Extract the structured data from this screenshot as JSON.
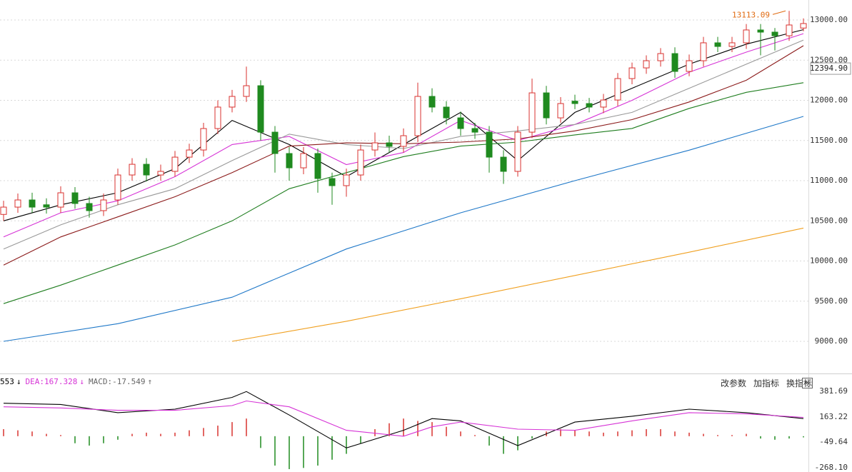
{
  "chart_data": [
    {
      "type": "candlestick",
      "up_color": "#d9322f",
      "down_color": "#1f8a1f",
      "xlim": [
        0,
        56
      ],
      "open": [
        10580,
        10671,
        10760,
        10700,
        10671,
        10849,
        10716,
        10627,
        10760,
        11071,
        11204,
        11071,
        11116,
        11293,
        11382,
        11649,
        11916,
        12049,
        12182,
        11604,
        11338,
        11160,
        11338,
        11027,
        10938,
        11071,
        11382,
        11471,
        11427,
        11560,
        12049,
        11916,
        11782,
        11649,
        11604,
        11293,
        11116,
        11604,
        12093,
        11782,
        11990,
        11960,
        11916,
        12004,
        12271,
        12404,
        12493,
        12582,
        12360,
        12493,
        12716,
        12671,
        12716,
        12876,
        12849,
        12804,
        12900
      ],
      "high": [
        10750,
        10840,
        10850,
        10780,
        10930,
        10920,
        10800,
        10840,
        11150,
        11280,
        11280,
        11200,
        11370,
        11460,
        11720,
        12000,
        12130,
        12420,
        12250,
        11680,
        11420,
        11420,
        11400,
        11100,
        11150,
        11450,
        11600,
        11560,
        11650,
        12220,
        12150,
        11990,
        11860,
        11720,
        11680,
        11380,
        11680,
        12270,
        12180,
        12040,
        12070,
        12030,
        12080,
        12340,
        12470,
        12560,
        12650,
        12660,
        12570,
        12790,
        12790,
        12790,
        12950,
        12950,
        12900,
        13113.09,
        13020
      ],
      "low": [
        10500,
        10600,
        10600,
        10590,
        10600,
        10650,
        10540,
        10560,
        10700,
        11000,
        10990,
        11000,
        11050,
        11220,
        11300,
        11580,
        11850,
        11980,
        11500,
        11100,
        11000,
        11080,
        10850,
        10700,
        10800,
        11000,
        11300,
        11350,
        11350,
        11480,
        11850,
        11700,
        11560,
        11520,
        11100,
        10960,
        11050,
        11530,
        11700,
        11720,
        11890,
        11850,
        11840,
        11930,
        12200,
        12330,
        12420,
        12280,
        12300,
        12420,
        12600,
        12600,
        12640,
        12560,
        12620,
        12740,
        12860
      ],
      "close": [
        10671,
        10760,
        10671,
        10671,
        10849,
        10716,
        10627,
        10760,
        11071,
        11204,
        11071,
        11116,
        11293,
        11382,
        11649,
        11916,
        12049,
        12182,
        11604,
        11338,
        11160,
        11338,
        11027,
        10938,
        11071,
        11382,
        11471,
        11427,
        11560,
        12049,
        11916,
        11782,
        11649,
        11604,
        11293,
        11116,
        11604,
        12093,
        11782,
        11960,
        11960,
        11916,
        12004,
        12271,
        12404,
        12493,
        12582,
        12360,
        12493,
        12716,
        12671,
        12716,
        12876,
        12849,
        12804,
        12938,
        12956
      ],
      "lines": [
        {
          "color": "#000000",
          "x": [
            0,
            4,
            8,
            12,
            16,
            20,
            24,
            28,
            32,
            36,
            40,
            44,
            48,
            52,
            56
          ],
          "values": [
            10500,
            10700,
            10850,
            11150,
            11750,
            11450,
            11050,
            11450,
            11850,
            11250,
            11850,
            12150,
            12450,
            12700,
            12880
          ]
        },
        {
          "color": "#d633d6",
          "x": [
            0,
            4,
            8,
            12,
            16,
            20,
            24,
            28,
            32,
            36,
            40,
            44,
            48,
            52,
            56
          ],
          "values": [
            10300,
            10600,
            10750,
            11050,
            11450,
            11550,
            11200,
            11350,
            11750,
            11500,
            11700,
            12000,
            12350,
            12600,
            12830
          ]
        },
        {
          "color": "#999999",
          "x": [
            0,
            4,
            8,
            12,
            16,
            20,
            24,
            28,
            32,
            36,
            40,
            44,
            48,
            52,
            56
          ],
          "values": [
            10150,
            10450,
            10700,
            10900,
            11250,
            11580,
            11450,
            11400,
            11550,
            11620,
            11700,
            11850,
            12150,
            12450,
            12750
          ]
        },
        {
          "color": "#8b1a1a",
          "x": [
            0,
            4,
            8,
            12,
            16,
            20,
            24,
            28,
            32,
            36,
            40,
            44,
            48,
            52,
            56
          ],
          "values": [
            9950,
            10300,
            10550,
            10800,
            11100,
            11430,
            11470,
            11460,
            11480,
            11520,
            11620,
            11760,
            11980,
            12250,
            12680
          ]
        },
        {
          "color": "#1e7d1e",
          "x": [
            0,
            4,
            8,
            12,
            16,
            20,
            24,
            28,
            32,
            36,
            40,
            44,
            48,
            52,
            56
          ],
          "values": [
            9470,
            9700,
            9950,
            10200,
            10500,
            10900,
            11100,
            11300,
            11430,
            11480,
            11570,
            11650,
            11900,
            12100,
            12220
          ]
        },
        {
          "color": "#1f78c8",
          "x": [
            0,
            8,
            16,
            24,
            32,
            40,
            48,
            56
          ],
          "values": [
            9000,
            9220,
            9550,
            10150,
            10600,
            11000,
            11380,
            11800
          ]
        },
        {
          "color": "#f0a020",
          "x": [
            16,
            24,
            32,
            40,
            48,
            56
          ],
          "values": [
            9000,
            9250,
            9530,
            9820,
            10110,
            10410
          ]
        }
      ],
      "ylim": [
        8627,
        13249
      ],
      "yticks": [
        {
          "value": 9000,
          "label": "9000.00"
        },
        {
          "value": 9500,
          "label": "9500.00"
        },
        {
          "value": 10000,
          "label": "10000.00"
        },
        {
          "value": 10500,
          "label": "10500.00"
        },
        {
          "value": 11000,
          "label": "11000.00"
        },
        {
          "value": 11500,
          "label": "11500.00"
        },
        {
          "value": 12000,
          "label": "12000.00"
        },
        {
          "value": 12500,
          "label": "12500.00"
        },
        {
          "value": 13000,
          "label": "13000.00"
        }
      ],
      "grid": true,
      "last_price": {
        "value": 12394.9,
        "label": "12394.90"
      },
      "high_marker": 13113.09
    },
    {
      "type": "macd",
      "xlim": [
        0,
        56
      ],
      "header": [
        {
          "label": "553",
          "arrow": "↓",
          "color": "#000000"
        },
        {
          "label": "DEA:167.328",
          "arrow": "↓",
          "color": "#d633d6"
        },
        {
          "label": "MACD:-17.549",
          "arrow": "↑",
          "color": "#666666"
        }
      ],
      "buttons": [
        "改参数",
        "加指标",
        "换指标"
      ],
      "dif": {
        "color": "#000000",
        "x": [
          0,
          4,
          8,
          12,
          16,
          17,
          20,
          24,
          28,
          30,
          32,
          36,
          40,
          44,
          48,
          52,
          56
        ],
        "values": [
          280,
          270,
          200,
          230,
          330,
          380,
          180,
          -100,
          50,
          150,
          130,
          -80,
          120,
          170,
          230,
          200,
          150
        ]
      },
      "dea": {
        "color": "#d633d6",
        "x": [
          0,
          4,
          8,
          12,
          16,
          17,
          20,
          24,
          28,
          30,
          32,
          36,
          40,
          44,
          48,
          52,
          56
        ],
        "values": [
          250,
          240,
          220,
          220,
          260,
          300,
          250,
          50,
          0,
          80,
          120,
          60,
          50,
          130,
          200,
          190,
          160
        ]
      },
      "bars": {
        "up_color": "#d9322f",
        "down_color": "#1f8a1f",
        "values": [
          60,
          50,
          40,
          20,
          10,
          -60,
          -80,
          -60,
          -30,
          20,
          30,
          20,
          30,
          50,
          70,
          90,
          120,
          150,
          -100,
          -250,
          -280,
          -270,
          -250,
          -200,
          -150,
          -60,
          60,
          110,
          150,
          130,
          120,
          80,
          40,
          10,
          -80,
          -150,
          -120,
          -20,
          40,
          60,
          50,
          40,
          30,
          40,
          50,
          60,
          60,
          40,
          30,
          20,
          10,
          10,
          20,
          -20,
          -30,
          -20,
          -10
        ]
      },
      "ylim": [
        -304.5,
        503.15
      ],
      "yticks": [
        381.69,
        163.22,
        -49.64,
        {
          "value": -268.1,
          "label": "-268.10"
        }
      ]
    }
  ]
}
